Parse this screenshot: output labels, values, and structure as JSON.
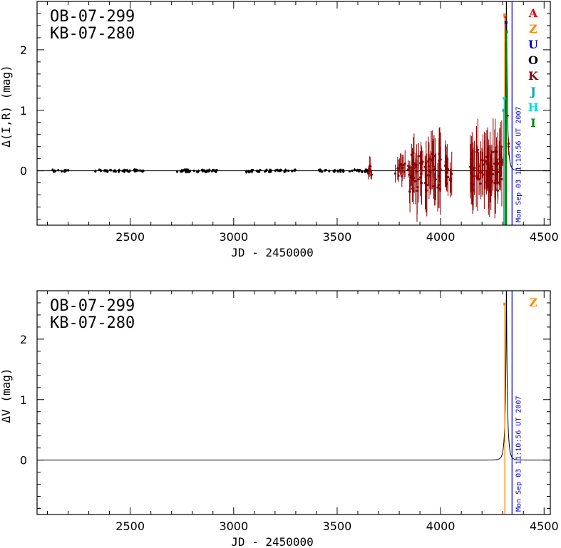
{
  "chart_data": [
    {
      "type": "scatter",
      "title_lines": [
        "OB-07-299",
        "KB-07-280"
      ],
      "xlabel": "JD - 2450000",
      "ylabel": "Δ(I,R) (mag)",
      "xlim": [
        2050,
        4530
      ],
      "ylim": [
        -0.9,
        2.8
      ],
      "xticks": [
        2500,
        3000,
        3500,
        4000,
        4500
      ],
      "yticks": [
        0,
        1,
        2
      ],
      "date_marker": {
        "x": 4345,
        "label": "Mon Sep 03 11:10:56 UT 2007",
        "color": "#0000cc"
      },
      "legend": [
        {
          "label": "A",
          "color": "#dd0000"
        },
        {
          "label": "Z",
          "color": "#ff8800"
        },
        {
          "label": "U",
          "color": "#0000cc"
        },
        {
          "label": "O",
          "color": "#000000"
        },
        {
          "label": "K",
          "color": "#8b0000"
        },
        {
          "label": "J",
          "color": "#00aaaa"
        },
        {
          "label": "H",
          "color": "#00dddd"
        },
        {
          "label": "I",
          "color": "#008800"
        }
      ],
      "model": {
        "t0": 4318,
        "u0": 0.06,
        "tE": 12,
        "color": "#000000"
      },
      "series": [
        {
          "name": "O",
          "color": "#000000",
          "segments": [
            {
              "x0": 2110,
              "x1": 2200,
              "n": 12,
              "err": 0.02,
              "scatter": 0.02
            },
            {
              "x0": 2330,
              "x1": 2570,
              "n": 40,
              "err": 0.02,
              "scatter": 0.02
            },
            {
              "x0": 2700,
              "x1": 2920,
              "n": 36,
              "err": 0.02,
              "scatter": 0.02
            },
            {
              "x0": 3060,
              "x1": 3300,
              "n": 42,
              "err": 0.02,
              "scatter": 0.02
            },
            {
              "x0": 3410,
              "x1": 3660,
              "n": 42,
              "err": 0.02,
              "scatter": 0.02
            }
          ]
        },
        {
          "name": "K",
          "color": "#8b0000",
          "segments": [
            {
              "x0": 3650,
              "x1": 3670,
              "n": 6,
              "err": 0.12,
              "scatter": 0.12
            },
            {
              "x0": 3780,
              "x1": 3880,
              "n": 26,
              "err": 0.15,
              "scatter": 0.12
            },
            {
              "x0": 3850,
              "x1": 4010,
              "n": 60,
              "err": 0.35,
              "scatter": 0.35
            },
            {
              "x0": 4020,
              "x1": 4060,
              "n": 14,
              "err": 0.25,
              "scatter": 0.25
            },
            {
              "x0": 4140,
              "x1": 4300,
              "n": 70,
              "err": 0.4,
              "scatter": 0.35
            },
            {
              "x0": 4300,
              "x1": 4330,
              "n": 14,
              "err": 0.1,
              "scatter": 0.05
            }
          ]
        }
      ],
      "peak_points": [
        {
          "color": "#dd0000",
          "x": 4312,
          "y": 2.55
        },
        {
          "color": "#ff8800",
          "x": 4310,
          "y": 2.58
        },
        {
          "color": "#0000cc",
          "x": 4316,
          "y": 2.45
        },
        {
          "color": "#00aaaa",
          "x": 4305,
          "y": 1.0
        },
        {
          "color": "#00dddd",
          "x": 4307,
          "y": 1.2
        },
        {
          "color": "#008800",
          "x": 4318,
          "y": 2.3
        }
      ]
    },
    {
      "type": "scatter",
      "title_lines": [
        "OB-07-299",
        "KB-07-280"
      ],
      "xlabel": "JD - 2450000",
      "ylabel": "ΔV (mag)",
      "xlim": [
        2050,
        4530
      ],
      "ylim": [
        -0.9,
        2.8
      ],
      "xticks": [
        2500,
        3000,
        3500,
        4000,
        4500
      ],
      "yticks": [
        0,
        1,
        2
      ],
      "date_marker": {
        "x": 4345,
        "label": "Mon Sep 03 11:10:56 UT 2007",
        "color": "#0000cc"
      },
      "legend": [
        {
          "label": "Z",
          "color": "#ff8800"
        }
      ],
      "model": {
        "t0": 4318,
        "u0": 0.06,
        "tE": 12,
        "color": "#000000"
      },
      "peak_points": [
        {
          "color": "#ff8800",
          "x": 4310,
          "y": 2.58
        }
      ]
    }
  ]
}
